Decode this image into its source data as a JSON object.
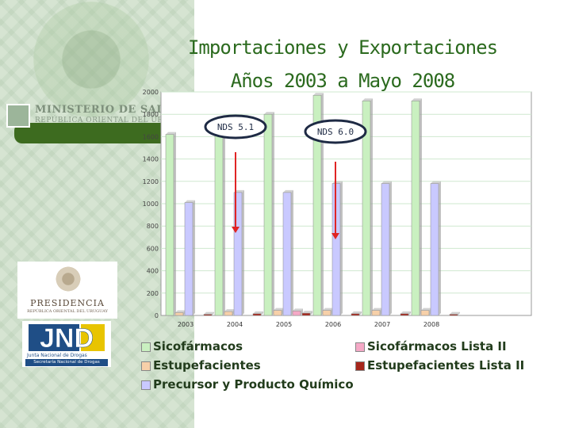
{
  "title": {
    "line1": "Importaciones y Exportaciones",
    "line2": "Años 2003 a Mayo 2008"
  },
  "header": {
    "ministry_name": "MINISTERIO DE SALUD PÚBLICA",
    "ministry_sub": "REPÚBLICA ORIENTAL DEL URUGUAY"
  },
  "logos": {
    "presidencia": "PRESIDENCIA",
    "presidencia_sub": "REPÚBLICA ORIENTAL DEL URUGUAY",
    "jnd": "JND",
    "jnd_line1": "Junta Nacional de Drogas",
    "jnd_line2": "Secretaría Nacional de Drogas"
  },
  "annotations": [
    {
      "label": "NDS 5.1",
      "after_category": "2003"
    },
    {
      "label": "NDS 6.0",
      "after_category": "2005"
    }
  ],
  "colors": {
    "sicofarmacos": "#c9f0c0",
    "sicofarmacos_lista_ii": "#f5a9c6",
    "estupefacientes": "#f7d0a9",
    "estupefacientes_lista_ii": "#a6261b",
    "precursor": "#c9c9ff",
    "band": "#3d6b1f",
    "title": "#2b6a1e",
    "arrow": "#e02424"
  },
  "chart_data": {
    "type": "bar",
    "categories": [
      "2003",
      "2004",
      "2005",
      "2006",
      "2007",
      "2008"
    ],
    "ylim": [
      0,
      2000
    ],
    "yticks": [
      "0",
      "200",
      "400",
      "600",
      "800",
      "1000",
      "1200",
      "1400",
      "1600",
      "1800",
      "2000"
    ],
    "series": [
      {
        "name": "Sicofármacos",
        "values": [
          1620,
          1700,
          1800,
          1970,
          1920,
          1920
        ]
      },
      {
        "name": "Estupefacientes",
        "values": [
          25,
          35,
          45,
          45,
          45,
          45
        ]
      },
      {
        "name": "Precursor y Producto Químico",
        "values": [
          1010,
          1100,
          1100,
          1180,
          1180,
          1180
        ]
      },
      {
        "name": "Sicofármacos Lista II",
        "values": [
          0,
          0,
          40,
          0,
          0,
          0
        ]
      },
      {
        "name": "Estupefacientes Lista II",
        "values": [
          10,
          15,
          20,
          15,
          15,
          10
        ]
      }
    ]
  },
  "legend": {
    "items": [
      {
        "label": "Sicofármacos"
      },
      {
        "label": "Estupefacientes"
      },
      {
        "label": "Precursor y Producto Químico"
      },
      {
        "label": "Sicofármacos Lista II"
      },
      {
        "label": "Estupefacientes Lista II"
      }
    ]
  }
}
